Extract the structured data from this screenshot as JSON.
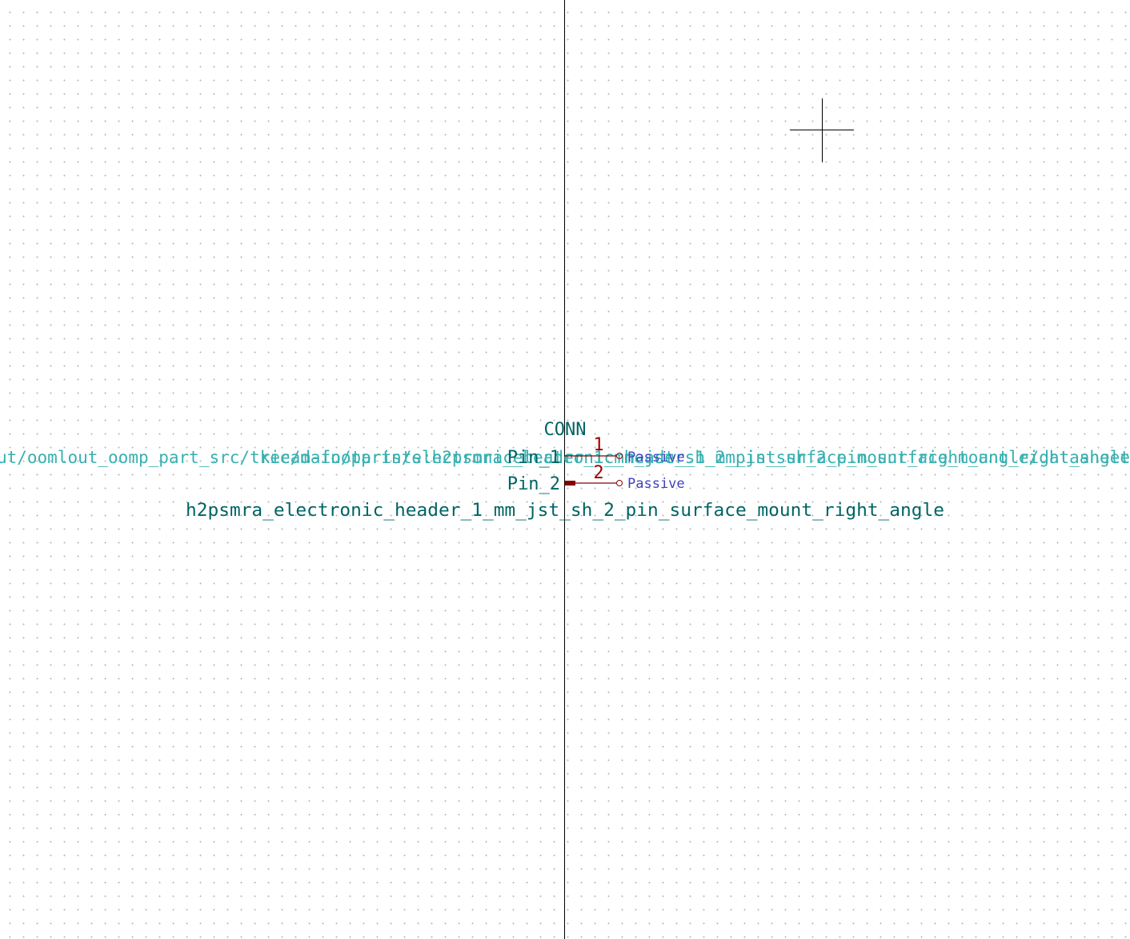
{
  "editor": {
    "mode": "symbol-editor-canvas",
    "colors": {
      "background": "#ffffff",
      "grid_dot": "#b4b4b4",
      "axis_line": "#000000",
      "field_text": "#006464",
      "hidden_field_text": "#38b0b0",
      "pin_body": "#840000",
      "pin_number": "#a00000",
      "pin_type": "#4040c0",
      "cursor": "#000000"
    }
  },
  "symbol": {
    "reference": "CONN",
    "value": "h2psmra_electronic_header_1_mm_jst_sh_2_pin_surface_mount_right_angle",
    "footprint_field": "kicad-footprints:h2psmra_electronic_header_1_mm_jst_sh_2_pin_surface_mount_right_angle",
    "datasheet_field": "https://github.com/oomlout/oomlout_oomp_part_src/tree/main/parts/electronic_header_1_mm_jst_sh_2_pin_surface_mount_right_angle/datasheet",
    "pins": [
      {
        "name": "Pin_1",
        "number": "1",
        "type": "Passive"
      },
      {
        "name": "Pin_2",
        "number": "2",
        "type": "Passive"
      }
    ]
  }
}
